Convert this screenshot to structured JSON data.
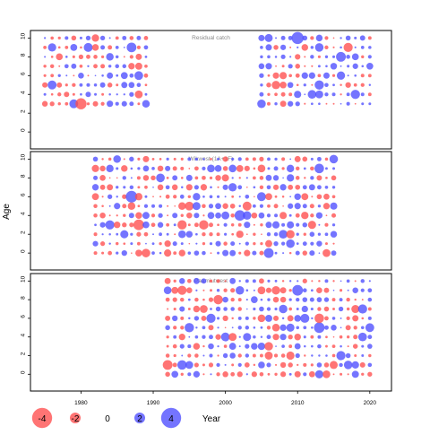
{
  "chart_data": {
    "type": "scatter",
    "ylabel": "Age",
    "xlabel": "Year",
    "xlim": [
      1973,
      2023
    ],
    "x_ticks": [
      "1980",
      "1990",
      "2000",
      "2010",
      "2020"
    ],
    "ylim": [
      -1.8,
      10.8
    ],
    "y_ticks": [
      "0",
      "2",
      "4",
      "6",
      "8",
      "10"
    ],
    "colors": {
      "negative": "#ff4d4d",
      "positive": "#4d4dff",
      "frame": "#000000",
      "subtitle": "#888888"
    },
    "legend": {
      "position": "bottom",
      "values": [
        -4,
        -2,
        0,
        2,
        4
      ],
      "labels": [
        "-4",
        "-2",
        "0",
        "2",
        "4"
      ]
    },
    "panels": [
      {
        "title": "Residual catch",
        "years": [
          1975,
          2020
        ],
        "ages": [
          3,
          10
        ],
        "gaps": [
          [
            1990,
            2004
          ]
        ],
        "sign_bias": 0.1,
        "seed": 11
      },
      {
        "title": "Wikwest (1A+1F)",
        "years": [
          1982,
          2015
        ],
        "ages": [
          0,
          10
        ],
        "gaps": [],
        "sign_bias": 0.05,
        "seed": 23
      },
      {
        "title": "Paamiutwest",
        "years": [
          1992,
          2020
        ],
        "ages": [
          0,
          10
        ],
        "gaps": [],
        "sign_bias": -0.05,
        "seed": 37
      }
    ]
  }
}
